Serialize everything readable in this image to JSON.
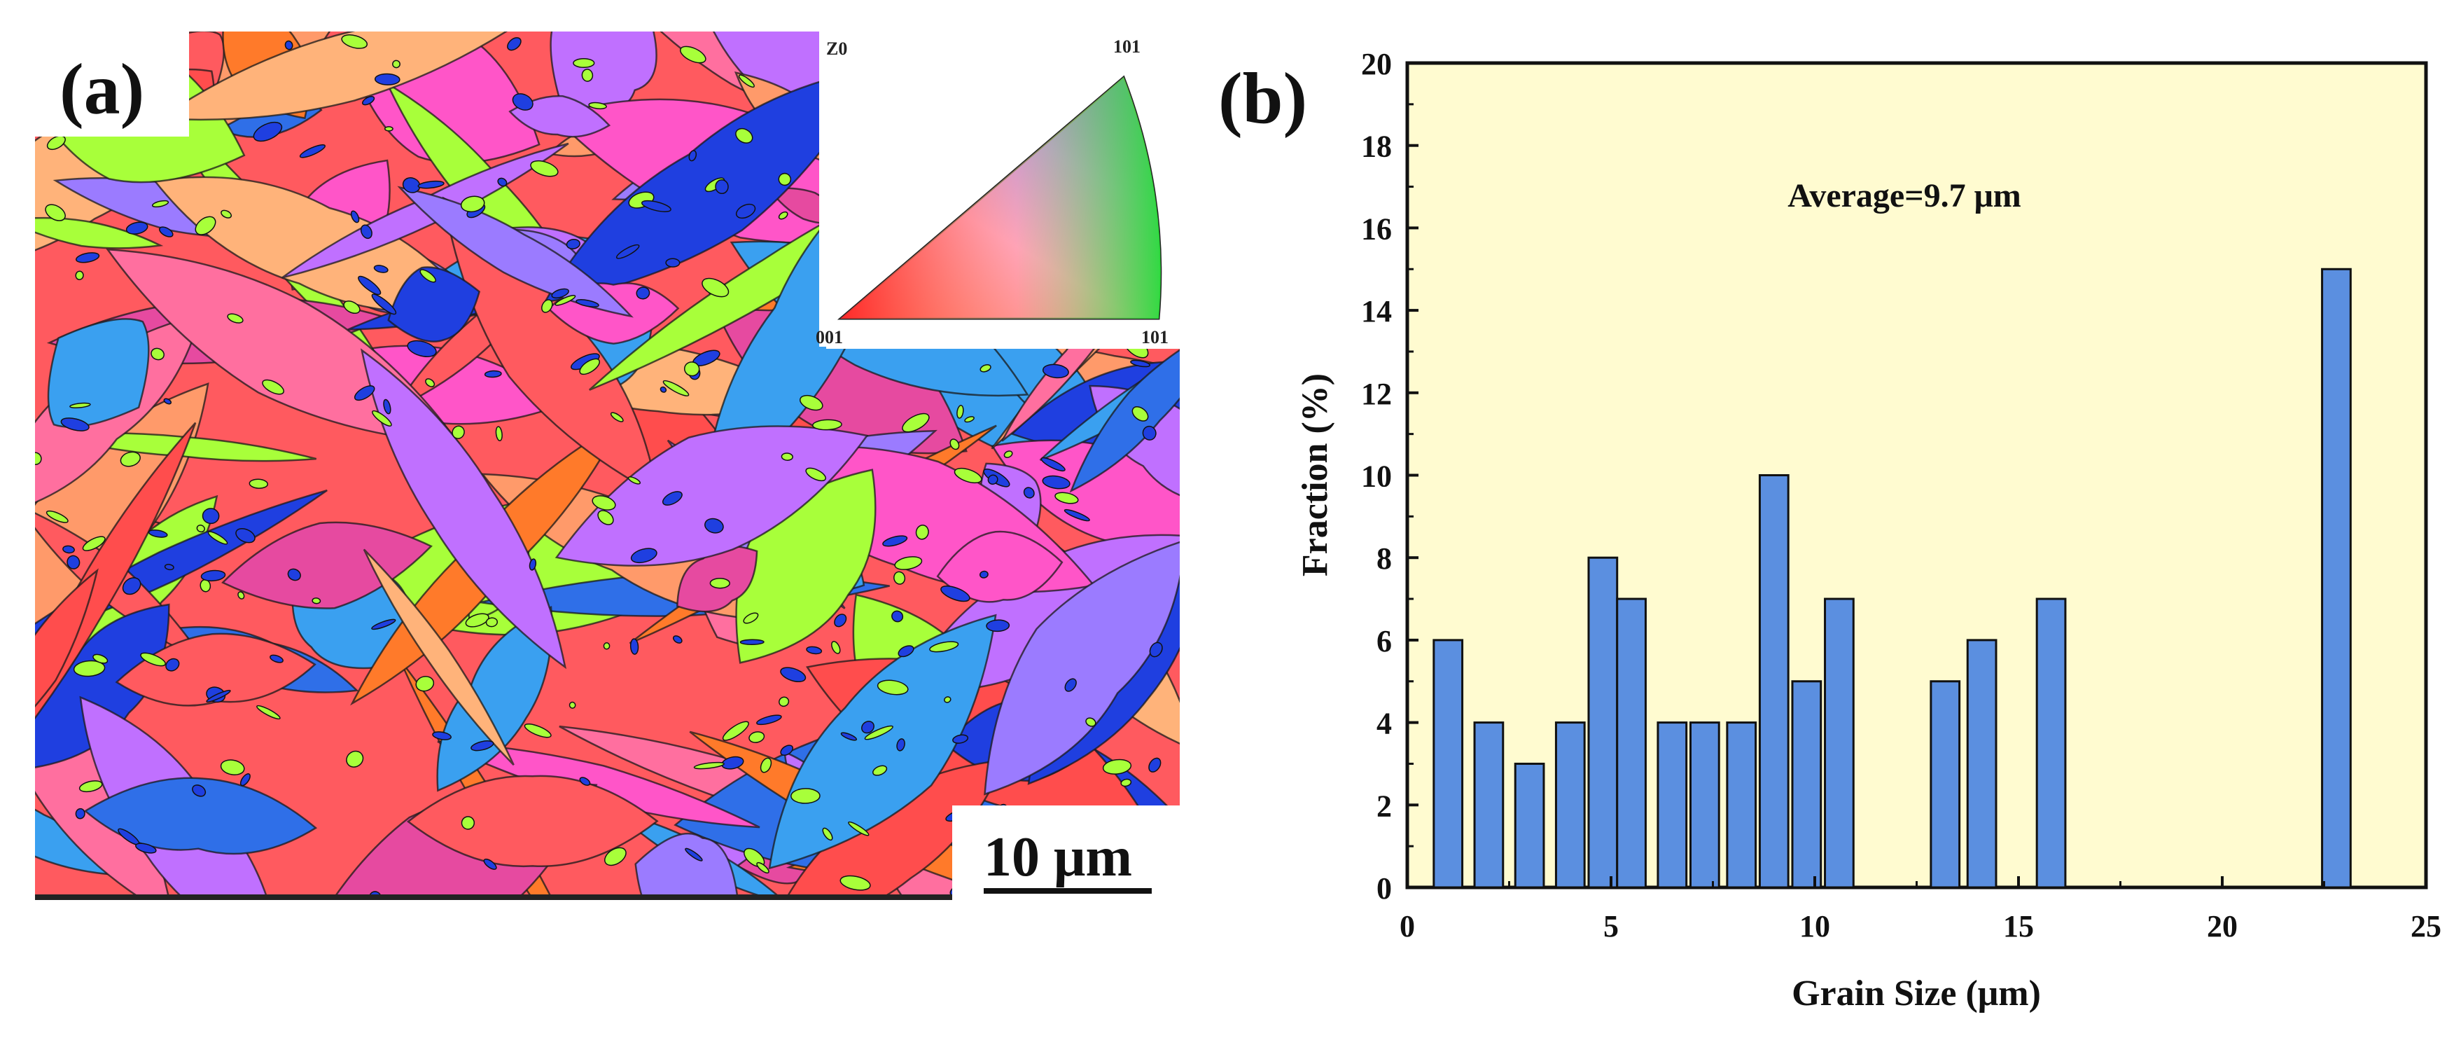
{
  "panel_a": {
    "label": "(a)",
    "ipf_key": {
      "axis": "Z0",
      "top_corner": "101",
      "bottom_left": "001",
      "bottom_right": "101"
    },
    "scale_bar": "10 μm",
    "colors": [
      "#ff5a5f",
      "#ff6f9f",
      "#ff7a2a",
      "#ff4d4d",
      "#ff9a6a",
      "#1f3fe0",
      "#2f6fe8",
      "#3aa0f0",
      "#9b7bff",
      "#c070ff",
      "#ff55c8",
      "#a8ff3a",
      "#ffb37a",
      "#e64aa0"
    ]
  },
  "panel_b": {
    "label": "(b)"
  },
  "chart_data": {
    "type": "bar",
    "x": [
      1,
      2,
      3,
      4,
      4.8,
      5.5,
      6.5,
      7.3,
      8.2,
      9,
      9.8,
      10.6,
      13.2,
      14.1,
      15.8,
      22.8
    ],
    "values": [
      6,
      4,
      3,
      4,
      8,
      7,
      4,
      4,
      4,
      10,
      5,
      7,
      5,
      6,
      7,
      15
    ],
    "xlabel": "Grain Size (μm)",
    "ylabel": "Fraction (%)",
    "xlim": [
      0,
      25
    ],
    "ylim": [
      0,
      20
    ],
    "xticks": [
      "0",
      "5",
      "10",
      "15",
      "20",
      "25"
    ],
    "yticks": [
      "0",
      "2",
      "4",
      "6",
      "8",
      "10",
      "12",
      "14",
      "16",
      "18",
      "20"
    ],
    "annotation": "Average=9.7 μm",
    "bar_color": "#5b8fe0",
    "background": "#fffbd0",
    "grid": false,
    "legend": "none"
  }
}
